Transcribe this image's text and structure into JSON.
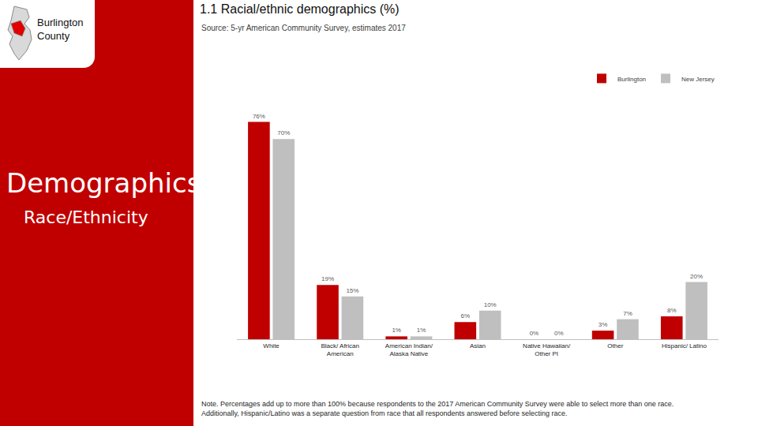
{
  "panel": {
    "county": "Burlington County",
    "heading": "Demographics",
    "subheading": "Race/Ethnicity"
  },
  "chart_data": {
    "type": "bar",
    "title": "1.1 Racial/ethnic demographics (%)",
    "subtitle": "Source: 5-yr American Community Survey, estimates 2017",
    "categories": [
      "White",
      "Black/ African American",
      "American Indian/ Alaska Native",
      "Asian",
      "Native Hawaiian/ Other PI",
      "Other",
      "Hispanic/ Latino"
    ],
    "series": [
      {
        "name": "Burlington",
        "color": "#c00000",
        "values": [
          76,
          19,
          1,
          6,
          0,
          3,
          8
        ],
        "value_labels": [
          "76%",
          "19%",
          "1%",
          "6%",
          "0%",
          "3%",
          "8%"
        ]
      },
      {
        "name": "New Jersey",
        "color": "#bfbfbf",
        "values": [
          70,
          15,
          1,
          10,
          0,
          7,
          20
        ],
        "value_labels": [
          "70%",
          "15%",
          "1%",
          "10%",
          "0%",
          "7%",
          "20%"
        ]
      }
    ],
    "data_labels": true,
    "legend": "top right",
    "tick_labels": "x",
    "grid": false,
    "note": [
      "Note. Percentages add up to more than 100% because respondents to the 2017 American Community Survey were able to select more than one race.",
      "Additionally, Hispanic/Latino was a separate question from race that all respondents answered before selecting race."
    ]
  }
}
